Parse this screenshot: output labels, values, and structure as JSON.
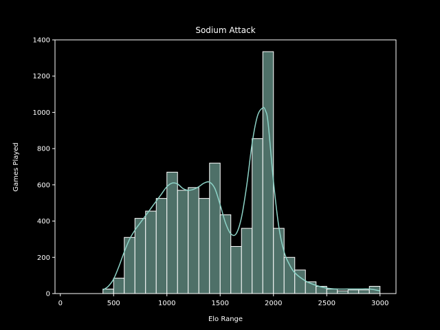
{
  "chart_data": {
    "type": "bar",
    "title": "Sodium Attack",
    "xlabel": "Elo Range",
    "ylabel": "Games Played",
    "xlim": [
      -50,
      3150
    ],
    "ylim": [
      0,
      1400
    ],
    "xticks": [
      0,
      500,
      1000,
      1500,
      2000,
      2500,
      3000
    ],
    "yticks": [
      0,
      200,
      400,
      600,
      800,
      1000,
      1200,
      1400
    ],
    "bin_width": 100,
    "bins": [
      {
        "x0": 400,
        "count": 25
      },
      {
        "x0": 500,
        "count": 85
      },
      {
        "x0": 600,
        "count": 310
      },
      {
        "x0": 700,
        "count": 415
      },
      {
        "x0": 800,
        "count": 455
      },
      {
        "x0": 900,
        "count": 525
      },
      {
        "x0": 1000,
        "count": 670
      },
      {
        "x0": 1100,
        "count": 570
      },
      {
        "x0": 1200,
        "count": 585
      },
      {
        "x0": 1300,
        "count": 525
      },
      {
        "x0": 1400,
        "count": 720
      },
      {
        "x0": 1500,
        "count": 435
      },
      {
        "x0": 1600,
        "count": 260
      },
      {
        "x0": 1700,
        "count": 360
      },
      {
        "x0": 1800,
        "count": 855
      },
      {
        "x0": 1900,
        "count": 1335
      },
      {
        "x0": 2000,
        "count": 360
      },
      {
        "x0": 2100,
        "count": 200
      },
      {
        "x0": 2200,
        "count": 130
      },
      {
        "x0": 2300,
        "count": 65
      },
      {
        "x0": 2400,
        "count": 40
      },
      {
        "x0": 2500,
        "count": 25
      },
      {
        "x0": 2600,
        "count": 15
      },
      {
        "x0": 2700,
        "count": 20
      },
      {
        "x0": 2800,
        "count": 20
      },
      {
        "x0": 2900,
        "count": 40
      }
    ],
    "kde": {
      "x": [
        400,
        450,
        500,
        550,
        600,
        650,
        700,
        750,
        800,
        850,
        900,
        950,
        1000,
        1050,
        1100,
        1150,
        1200,
        1250,
        1300,
        1350,
        1400,
        1450,
        1500,
        1550,
        1600,
        1650,
        1700,
        1750,
        1800,
        1850,
        1900,
        1925,
        1950,
        2000,
        2050,
        2100,
        2150,
        2200,
        2300,
        2400,
        2500,
        2600,
        2700,
        2800,
        2900,
        3000
      ],
      "y": [
        20,
        40,
        80,
        150,
        230,
        300,
        350,
        390,
        430,
        470,
        510,
        550,
        590,
        610,
        605,
        580,
        570,
        575,
        590,
        610,
        615,
        580,
        490,
        390,
        330,
        330,
        420,
        600,
        830,
        980,
        1025,
        1010,
        940,
        620,
        370,
        230,
        160,
        115,
        70,
        45,
        30,
        25,
        25,
        25,
        25,
        15
      ]
    },
    "colors": {
      "bar_fill": "#4e7068",
      "bar_edge": "#ffffff",
      "kde_line": "#8dd3c7",
      "axes": "#ffffff",
      "background": "#000000"
    },
    "grid": false,
    "legend": "none"
  }
}
